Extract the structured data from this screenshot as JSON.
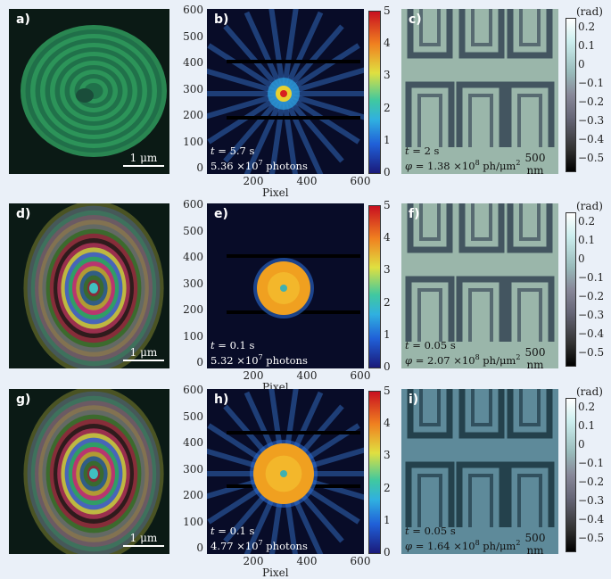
{
  "rows": [
    {
      "left_label": "a)",
      "mid_label": "b)",
      "right_label": "c)",
      "left_scalebar": "1 μm",
      "mid_time": "5.7 s",
      "mid_photons_mantissa": "5.36",
      "mid_photons_exp": "7",
      "mid_photons_unit": " photons",
      "right_time": "2 s",
      "right_phi_mantissa": "1.38",
      "right_phi_exp": "8",
      "right_phi_unit": " ph/μm",
      "right_scalebar": "500 nm",
      "show_xlabel": true
    },
    {
      "left_label": "d)",
      "mid_label": "e)",
      "right_label": "f)",
      "left_scalebar": "1 μm",
      "mid_time": "0.1 s",
      "mid_photons_mantissa": "5.32",
      "mid_photons_exp": "7",
      "mid_photons_unit": " photons",
      "right_time": "0.05 s",
      "right_phi_mantissa": "2.07",
      "right_phi_exp": "8",
      "right_phi_unit": " ph/μm",
      "right_scalebar": "500 nm",
      "show_xlabel": true
    },
    {
      "left_label": "g)",
      "mid_label": "h)",
      "right_label": "i)",
      "left_scalebar": "1 μm",
      "mid_time": "0.1 s",
      "mid_photons_mantissa": "4.77",
      "mid_photons_exp": "7",
      "mid_photons_unit": " photons",
      "right_time": "0.05 s",
      "right_phi_mantissa": "1.64",
      "right_phi_exp": "8",
      "right_phi_unit": " ph/μm",
      "right_scalebar": "500 nm",
      "show_xlabel": true
    }
  ],
  "t_symbol": "t",
  "phi_symbol": "φ",
  "times_sign": " ×10",
  "eq_sign": " = ",
  "squared": "2",
  "mid_axis": {
    "xlabel": "Pixel",
    "xticks": [
      "200",
      "400",
      "600"
    ],
    "yticks": [
      "600",
      "500",
      "400",
      "300",
      "200",
      "100",
      "0"
    ]
  },
  "mid_colorbar_ticks": [
    "5",
    "4",
    "3",
    "2",
    "1",
    "0"
  ],
  "right_colorbar_unit": "(rad)",
  "right_colorbar_ticks": [
    "0.2",
    "0.1",
    "0",
    "−0.1",
    "−0.2",
    "−0.3",
    "−0.4",
    "−0.5"
  ]
}
